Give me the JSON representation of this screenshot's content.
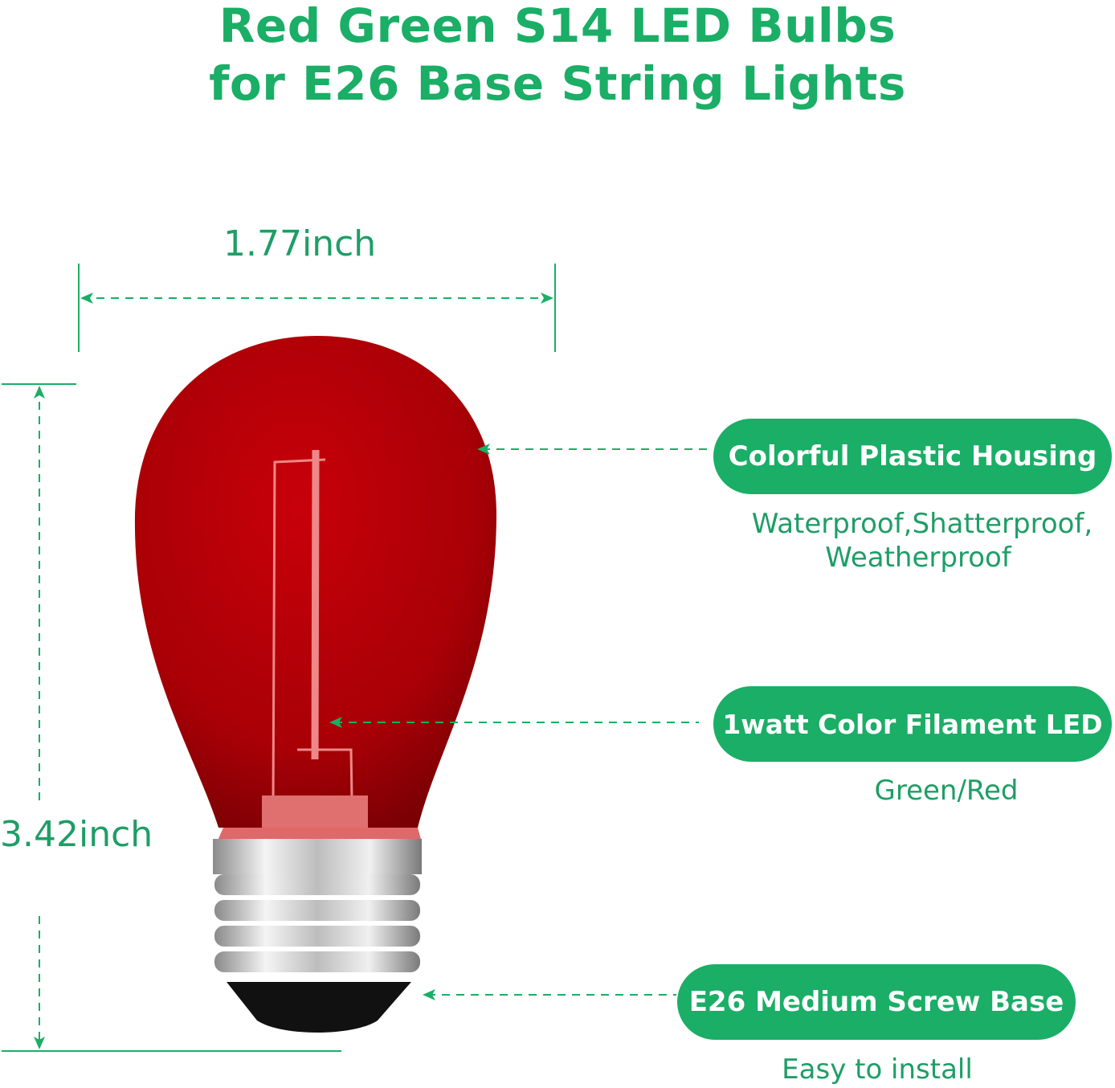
{
  "title": {
    "line1": "Red Green S14 LED Bulbs",
    "line2": "for E26 Base String Lights"
  },
  "dimensions": {
    "width": "1.77inch",
    "height": "3.42inch"
  },
  "features": [
    {
      "label": "Colorful Plastic Housing",
      "sub1": "Waterproof,Shatterproof,",
      "sub2": "Weatherproof"
    },
    {
      "label": "1watt Color Filament LED",
      "sub1": "Green/Red"
    },
    {
      "label": "E26 Medium Screw Base",
      "sub1": "Easy to install"
    }
  ],
  "colors": {
    "accent": "#1aae66",
    "bulb": "#b00008",
    "base": "#c8c8c8"
  }
}
